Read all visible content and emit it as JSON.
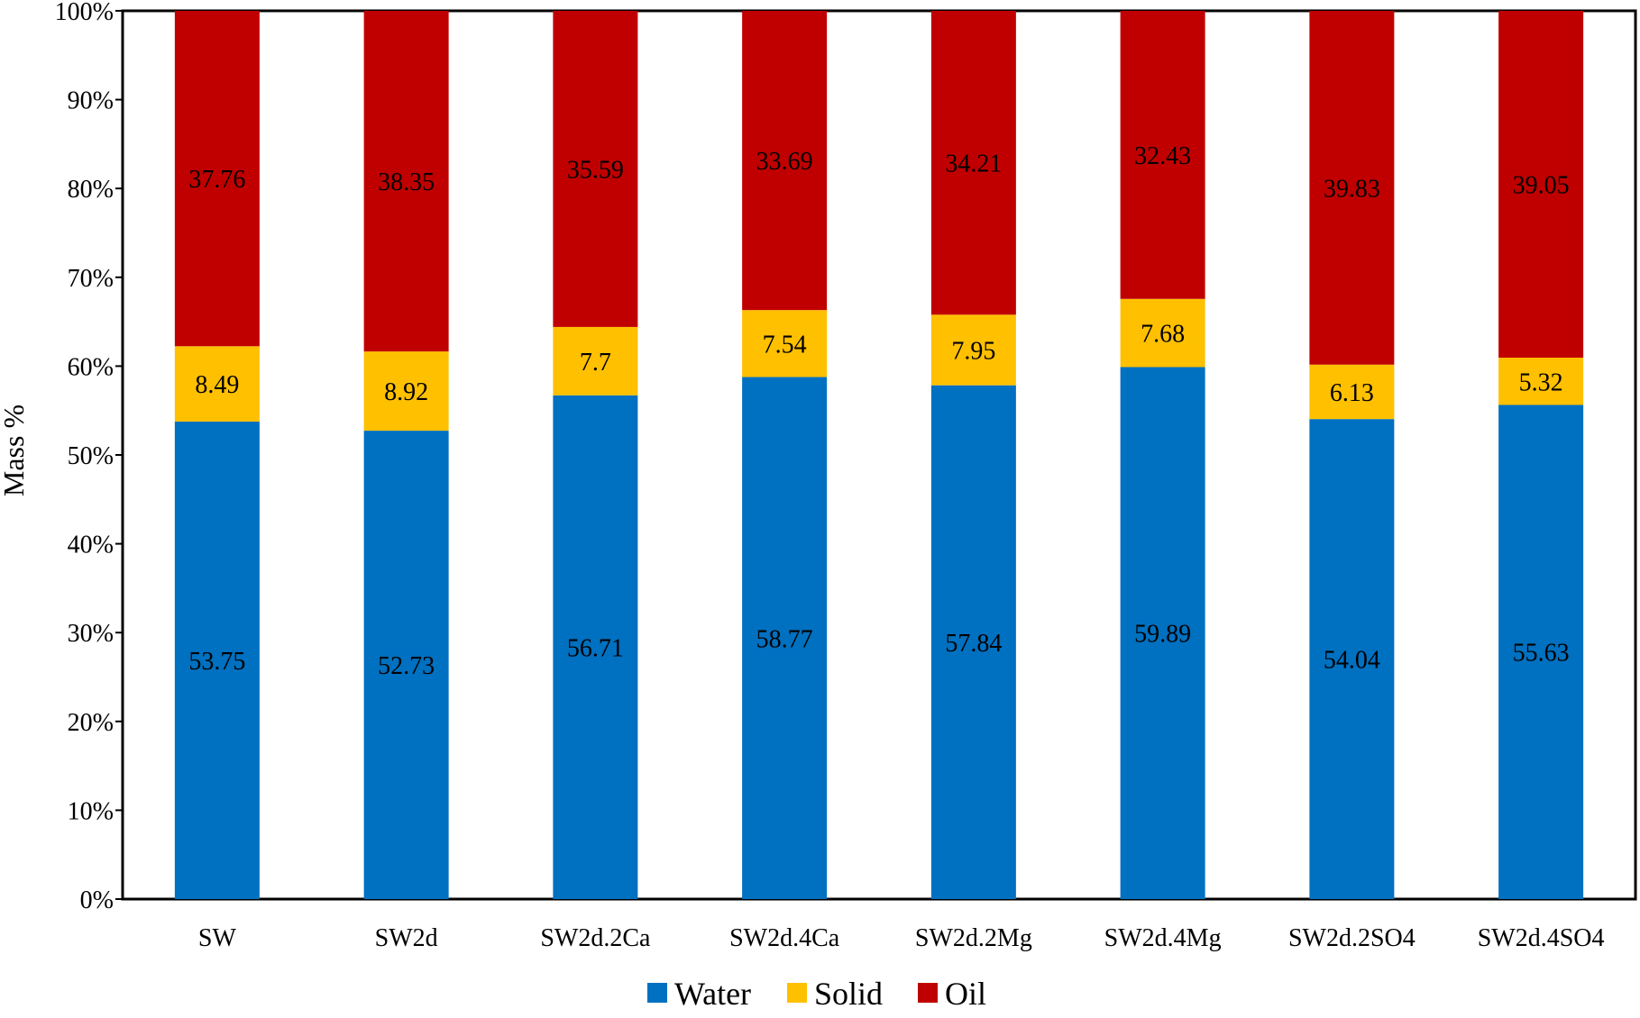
{
  "chart_data": {
    "type": "bar",
    "stacked": true,
    "percent_stacked": true,
    "title": "",
    "xlabel": "",
    "ylabel": "Mass %",
    "ylim": [
      0,
      100
    ],
    "yticks": [
      "0%",
      "10%",
      "20%",
      "30%",
      "40%",
      "50%",
      "60%",
      "70%",
      "80%",
      "90%",
      "100%"
    ],
    "grid": false,
    "legend_position": "bottom",
    "categories": [
      "SW",
      "SW2d",
      "SW2d.2Ca",
      "SW2d.4Ca",
      "SW2d.2Mg",
      "SW2d.4Mg",
      "SW2d.2SO4",
      "SW2d.4SO4"
    ],
    "series": [
      {
        "name": "Water",
        "color": "#0070c0",
        "values": [
          53.75,
          52.73,
          56.71,
          58.77,
          57.84,
          59.89,
          54.04,
          55.63
        ]
      },
      {
        "name": "Solid",
        "color": "#ffc000",
        "values": [
          8.49,
          8.92,
          7.7,
          7.54,
          7.95,
          7.68,
          6.13,
          5.32
        ]
      },
      {
        "name": "Oil",
        "color": "#c00000",
        "values": [
          37.76,
          38.35,
          35.59,
          33.69,
          34.21,
          32.43,
          39.83,
          39.05
        ]
      }
    ],
    "data_labels": [
      [
        "53.75",
        "52.73",
        "56.71",
        "58.77",
        "57.84",
        "59.89",
        "54.04",
        "55.63"
      ],
      [
        "8.49",
        "8.92",
        "7.7",
        "7.54",
        "7.95",
        "7.68",
        "6.13",
        "5.32"
      ],
      [
        "37.76",
        "38.35",
        "35.59",
        "33.69",
        "34.21",
        "32.43",
        "39.83",
        "39.05"
      ]
    ]
  }
}
